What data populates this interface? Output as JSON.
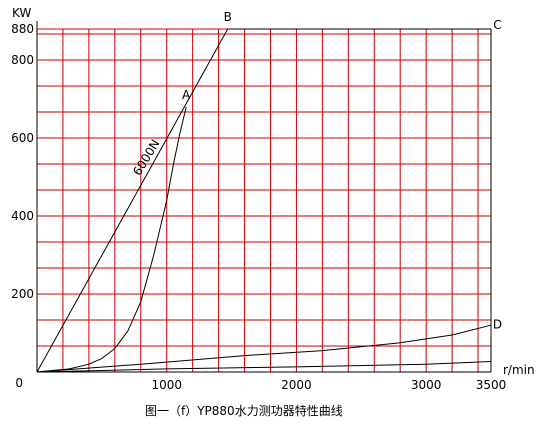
{
  "chart_data": {
    "type": "line",
    "title": "图一（f）YP880水力测功器特性曲线",
    "xlabel": "r/min",
    "ylabel": "KW",
    "xlim": [
      0,
      3500
    ],
    "ylim": [
      0,
      880
    ],
    "x_grid_step": 200,
    "y_grid_step": 66.7,
    "grid": true,
    "grid_color": "#cc0000",
    "line_color": "#000000",
    "x_ticks": [
      {
        "value": 1000,
        "label": "1000"
      },
      {
        "value": 2000,
        "label": "2000"
      },
      {
        "value": 3000,
        "label": "3000"
      },
      {
        "value": 3500,
        "label": "3500"
      }
    ],
    "y_ticks": [
      {
        "value": 0,
        "label": "0"
      },
      {
        "value": 200,
        "label": "200"
      },
      {
        "value": 400,
        "label": "400"
      },
      {
        "value": 600,
        "label": "600"
      },
      {
        "value": 800,
        "label": "800"
      },
      {
        "value": 880,
        "label": "880"
      }
    ],
    "series": [
      {
        "id": "torque-line",
        "name": "6000N",
        "points": [
          [
            0,
            0
          ],
          [
            1470,
            880
          ]
        ]
      },
      {
        "id": "max-power-curve",
        "points": [
          [
            0,
            0
          ],
          [
            250,
            8
          ],
          [
            400,
            20
          ],
          [
            500,
            35
          ],
          [
            600,
            60
          ],
          [
            700,
            105
          ],
          [
            800,
            180
          ],
          [
            900,
            300
          ],
          [
            1000,
            440
          ],
          [
            1050,
            530
          ],
          [
            1100,
            610
          ],
          [
            1150,
            680
          ]
        ]
      },
      {
        "id": "min-power-curve",
        "points": [
          [
            0,
            0
          ],
          [
            800,
            20
          ],
          [
            1600,
            42
          ],
          [
            2200,
            55
          ],
          [
            2800,
            75
          ],
          [
            3200,
            95
          ],
          [
            3500,
            120
          ]
        ]
      },
      {
        "id": "bottom-curve",
        "points": [
          [
            0,
            0
          ],
          [
            1000,
            8
          ],
          [
            2000,
            13
          ],
          [
            3000,
            20
          ],
          [
            3500,
            27
          ]
        ]
      }
    ],
    "vertical_lines": [
      {
        "id": "power-limit-line",
        "x": 3500,
        "ylim": [
          0,
          880
        ]
      }
    ],
    "horizontal_lines": [
      {
        "id": "max-power-line",
        "y": 880,
        "xlim": [
          1470,
          3500
        ]
      }
    ],
    "annotations": [
      {
        "id": "point-A",
        "label": "A",
        "x": 1150,
        "y": 700
      },
      {
        "id": "point-B",
        "label": "B",
        "x": 1470,
        "y": 900
      },
      {
        "id": "point-C",
        "label": "C",
        "x": 3550,
        "y": 880
      },
      {
        "id": "point-D",
        "label": "D",
        "x": 3550,
        "y": 112
      },
      {
        "id": "torque-label",
        "label": "6000N",
        "x": 870,
        "y": 545,
        "rotate": -59
      }
    ]
  }
}
